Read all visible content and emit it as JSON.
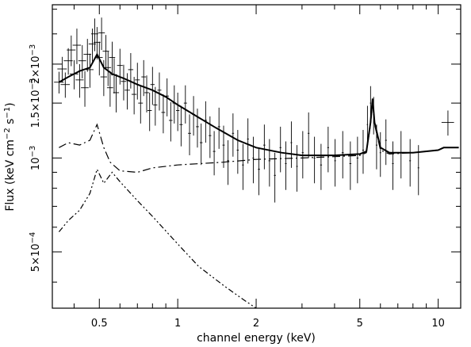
{
  "chart_data": {
    "type": "scatter",
    "xlabel": "channel energy (keV)",
    "ylabel_html": "Flux (keV cm<tspan dy='-5' font-size='10'>−2</tspan><tspan dy='5'> s</tspan><tspan dy='-5' font-size='10'>−1</tspan><tspan dy='5'>)</tspan>",
    "ylabel_text": "Flux (keV cm−2 s−1)",
    "x_scale": "log",
    "y_scale": "log",
    "xlim": [
      0.33,
      12.2
    ],
    "ylim": [
      0.00033,
      0.0031
    ],
    "x_ticks": [
      {
        "value": 0.5,
        "label": "0.5"
      },
      {
        "value": 1,
        "label": "1"
      },
      {
        "value": 2,
        "label": "2"
      },
      {
        "value": 5,
        "label": "5"
      },
      {
        "value": 10,
        "label": "10"
      }
    ],
    "y_ticks": [
      {
        "value": 0.0005,
        "mantissa": "5×10",
        "exp": "−4"
      },
      {
        "value": 0.001,
        "mantissa": "10",
        "exp": "−3"
      },
      {
        "value": 0.0015,
        "mantissa": "1.5×10",
        "exp": "−3"
      },
      {
        "value": 0.002,
        "mantissa": "2×10",
        "exp": "−3"
      }
    ],
    "grid": false,
    "legend": "none",
    "series": [
      {
        "kind": "model",
        "style": "solid",
        "points": [
          [
            0.35,
            0.00175
          ],
          [
            0.38,
            0.00182
          ],
          [
            0.42,
            0.0019
          ],
          [
            0.46,
            0.00195
          ],
          [
            0.49,
            0.00215
          ],
          [
            0.52,
            0.00195
          ],
          [
            0.56,
            0.00186
          ],
          [
            0.62,
            0.0018
          ],
          [
            0.7,
            0.00172
          ],
          [
            0.8,
            0.00165
          ],
          [
            0.9,
            0.00157
          ],
          [
            1.0,
            0.00148
          ],
          [
            1.2,
            0.00135
          ],
          [
            1.4,
            0.00125
          ],
          [
            1.7,
            0.00114
          ],
          [
            2.0,
            0.00108
          ],
          [
            2.5,
            0.00104
          ],
          [
            3.0,
            0.00102
          ],
          [
            4.0,
            0.00102
          ],
          [
            5.0,
            0.00103
          ],
          [
            5.3,
            0.00105
          ],
          [
            5.5,
            0.0013
          ],
          [
            5.6,
            0.00155
          ],
          [
            5.7,
            0.0013
          ],
          [
            6.0,
            0.00108
          ],
          [
            6.5,
            0.00104
          ],
          [
            8.0,
            0.00104
          ],
          [
            10.0,
            0.00106
          ],
          [
            10.5,
            0.00108
          ],
          [
            12.0,
            0.00108
          ]
        ]
      },
      {
        "kind": "component",
        "style": "dashed",
        "points": [
          [
            0.35,
            0.00108
          ],
          [
            0.38,
            0.00112
          ],
          [
            0.42,
            0.0011
          ],
          [
            0.46,
            0.00114
          ],
          [
            0.49,
            0.00128
          ],
          [
            0.52,
            0.00108
          ],
          [
            0.55,
            0.00097
          ],
          [
            0.6,
            0.00091
          ],
          [
            0.7,
            0.0009
          ],
          [
            0.8,
            0.00093
          ],
          [
            1.0,
            0.00095
          ],
          [
            1.5,
            0.00097
          ],
          [
            2.0,
            0.00099
          ],
          [
            3.0,
            0.001
          ],
          [
            4.0,
            0.00101
          ],
          [
            5.0,
            0.00102
          ],
          [
            5.3,
            0.00104
          ],
          [
            5.5,
            0.00128
          ],
          [
            5.6,
            0.00152
          ],
          [
            5.7,
            0.00128
          ],
          [
            6.0,
            0.00106
          ],
          [
            6.5,
            0.00103
          ],
          [
            8.0,
            0.00104
          ],
          [
            10.0,
            0.00106
          ],
          [
            10.5,
            0.00108
          ],
          [
            12.0,
            0.00108
          ]
        ]
      },
      {
        "kind": "component",
        "style": "dash-dot",
        "points": [
          [
            0.35,
            0.00058
          ],
          [
            0.38,
            0.00063
          ],
          [
            0.42,
            0.00068
          ],
          [
            0.46,
            0.00077
          ],
          [
            0.49,
            0.00092
          ],
          [
            0.52,
            0.00083
          ],
          [
            0.56,
            0.0009
          ],
          [
            0.6,
            0.00084
          ],
          [
            0.7,
            0.00073
          ],
          [
            0.8,
            0.00065
          ],
          [
            1.0,
            0.00053
          ],
          [
            1.2,
            0.00045
          ],
          [
            1.5,
            0.00039
          ],
          [
            1.8,
            0.00035
          ],
          [
            2.0,
            0.00033
          ]
        ]
      },
      {
        "kind": "data",
        "style": "crosses",
        "points": [
          [
            0.35,
            0.00175,
            0.00014,
            0.015
          ],
          [
            0.36,
            0.00193,
            0.00018,
            0.015
          ],
          [
            0.37,
            0.00172,
            0.00016,
            0.015
          ],
          [
            0.38,
            0.00205,
            0.0002,
            0.015
          ],
          [
            0.39,
            0.00222,
            0.00025,
            0.015
          ],
          [
            0.4,
            0.00186,
            0.0002,
            0.015
          ],
          [
            0.41,
            0.0023,
            0.0003,
            0.015
          ],
          [
            0.42,
            0.00178,
            0.00022,
            0.015
          ],
          [
            0.43,
            0.00205,
            0.00025,
            0.015
          ],
          [
            0.44,
            0.00168,
            0.00022,
            0.015
          ],
          [
            0.45,
            0.00215,
            0.00026,
            0.015
          ],
          [
            0.46,
            0.00192,
            0.00024,
            0.015
          ],
          [
            0.47,
            0.00232,
            0.00028,
            0.015
          ],
          [
            0.48,
            0.0025,
            0.0003,
            0.015
          ],
          [
            0.49,
            0.00235,
            0.00028,
            0.015
          ],
          [
            0.5,
            0.0021,
            0.00026,
            0.015
          ],
          [
            0.51,
            0.00252,
            0.0003,
            0.015
          ],
          [
            0.52,
            0.00182,
            0.00024,
            0.015
          ],
          [
            0.53,
            0.0022,
            0.00028,
            0.015
          ],
          [
            0.54,
            0.00195,
            0.00025,
            0.015
          ],
          [
            0.55,
            0.00168,
            0.00022,
            0.015
          ],
          [
            0.56,
            0.0021,
            0.00026,
            0.015
          ],
          [
            0.57,
            0.00185,
            0.00024,
            0.015
          ],
          [
            0.58,
            0.00162,
            0.00022,
            0.015
          ],
          [
            0.6,
            0.00198,
            0.00026,
            0.015
          ],
          [
            0.62,
            0.00176,
            0.00023,
            0.015
          ],
          [
            0.64,
            0.00165,
            0.00022,
            0.015
          ],
          [
            0.66,
            0.00192,
            0.00025,
            0.015
          ],
          [
            0.68,
            0.0016,
            0.00022,
            0.015
          ],
          [
            0.7,
            0.00178,
            0.00024,
            0.015
          ],
          [
            0.72,
            0.0015,
            0.00021,
            0.015
          ],
          [
            0.74,
            0.00182,
            0.00024,
            0.015
          ],
          [
            0.76,
            0.00162,
            0.00022,
            0.015
          ],
          [
            0.78,
            0.00142,
            0.0002,
            0.015
          ],
          [
            0.8,
            0.00172,
            0.00024,
            0.015
          ],
          [
            0.82,
            0.00148,
            0.00021,
            0.015
          ],
          [
            0.85,
            0.00165,
            0.00023,
            0.015
          ],
          [
            0.88,
            0.0014,
            0.0002,
            0.015
          ],
          [
            0.91,
            0.00158,
            0.00022,
            0.015
          ],
          [
            0.94,
            0.00132,
            0.00019,
            0.015
          ],
          [
            0.97,
            0.0015,
            0.00021,
            0.015
          ],
          [
            1.0,
            0.00142,
            0.0002,
            0.015
          ],
          [
            1.03,
            0.00128,
            0.00019,
            0.015
          ],
          [
            1.07,
            0.0015,
            0.00021,
            0.015
          ],
          [
            1.11,
            0.0012,
            0.00018,
            0.015
          ],
          [
            1.15,
            0.00138,
            0.0002,
            0.015
          ],
          [
            1.19,
            0.00126,
            0.00018,
            0.015
          ],
          [
            1.23,
            0.00112,
            0.00017,
            0.015
          ],
          [
            1.28,
            0.00132,
            0.0002,
            0.015
          ],
          [
            1.33,
            0.00118,
            0.00018,
            0.015
          ],
          [
            1.38,
            0.00105,
            0.00017,
            0.015
          ],
          [
            1.44,
            0.00126,
            0.00019,
            0.015
          ],
          [
            1.5,
            0.0011,
            0.00017,
            0.015
          ],
          [
            1.56,
            0.00098,
            0.00016,
            0.015
          ],
          [
            1.63,
            0.0012,
            0.00019,
            0.015
          ],
          [
            1.7,
            0.00106,
            0.00017,
            0.015
          ],
          [
            1.78,
            0.00095,
            0.00016,
            0.015
          ],
          [
            1.86,
            0.00115,
            0.00019,
            0.015
          ],
          [
            1.95,
            0.001,
            0.00017,
            0.015
          ],
          [
            2.05,
            0.00092,
            0.00016,
            0.02
          ],
          [
            2.15,
            0.0011,
            0.00018,
            0.02
          ],
          [
            2.25,
            0.00098,
            0.00017,
            0.02
          ],
          [
            2.36,
            0.00088,
            0.00016,
            0.02
          ],
          [
            2.48,
            0.00108,
            0.00018,
            0.02
          ],
          [
            2.6,
            0.00096,
            0.00017,
            0.02
          ],
          [
            2.73,
            0.00112,
            0.00019,
            0.02
          ],
          [
            2.87,
            0.00094,
            0.00016,
            0.02
          ],
          [
            3.02,
            0.00104,
            0.00018,
            0.025
          ],
          [
            3.18,
            0.0012,
            0.0002,
            0.025
          ],
          [
            3.35,
            0.001,
            0.00017,
            0.025
          ],
          [
            3.55,
            0.00095,
            0.00016,
            0.03
          ],
          [
            3.78,
            0.00108,
            0.00018,
            0.03
          ],
          [
            4.02,
            0.00098,
            0.00017,
            0.03
          ],
          [
            4.3,
            0.00104,
            0.00018,
            0.04
          ],
          [
            4.6,
            0.00096,
            0.00017,
            0.04
          ],
          [
            4.9,
            0.001,
            0.00017,
            0.04
          ],
          [
            5.15,
            0.00106,
            0.00017,
            0.04
          ],
          [
            5.35,
            0.00128,
            0.00019,
            0.03
          ],
          [
            5.5,
            0.0015,
            0.0002,
            0.03
          ],
          [
            5.65,
            0.00138,
            0.00019,
            0.03
          ],
          [
            5.8,
            0.0011,
            0.00018,
            0.04
          ],
          [
            6.0,
            0.00104,
            0.00017,
            0.04
          ],
          [
            6.3,
            0.00114,
            0.00019,
            0.05
          ],
          [
            6.7,
            0.00096,
            0.00017,
            0.05
          ],
          [
            7.2,
            0.00104,
            0.00018,
            0.06
          ],
          [
            7.8,
            0.00098,
            0.00017,
            0.06
          ],
          [
            8.4,
            0.00093,
            0.00017,
            0.06
          ],
          [
            10.9,
            0.0013,
            0.00012,
            0.6
          ]
        ]
      }
    ]
  }
}
